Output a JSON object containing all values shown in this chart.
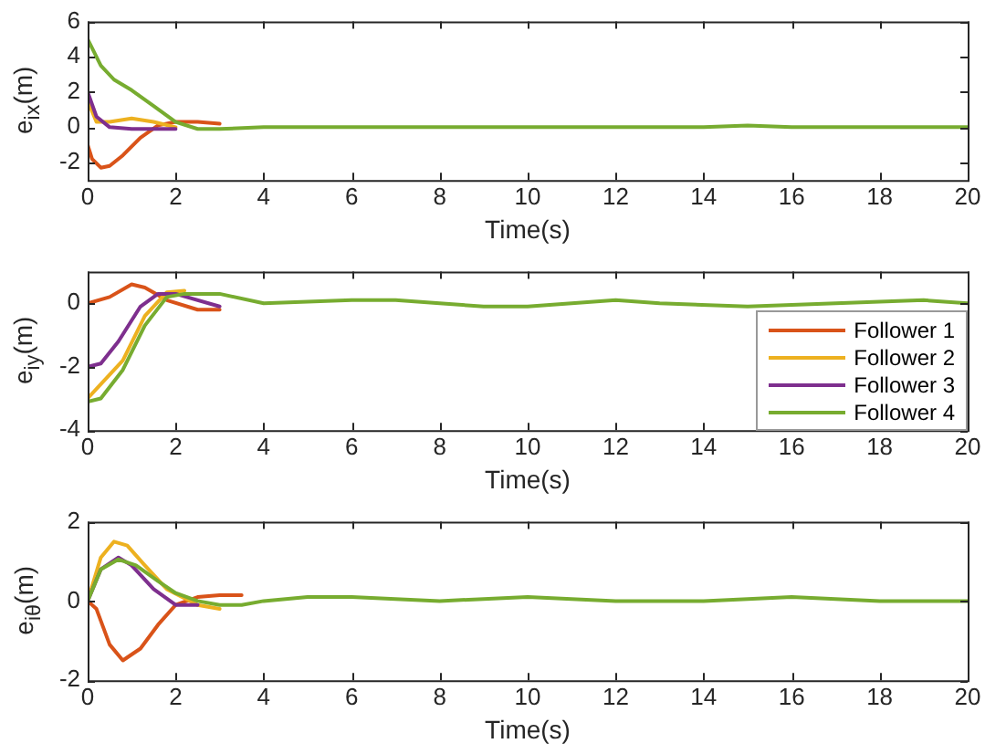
{
  "chart_data": [
    {
      "type": "line",
      "xlabel": "Time(s)",
      "ylabel": "e$_{ix}$(m)",
      "xlim": [
        0,
        20
      ],
      "xticks": [
        0,
        2,
        4,
        6,
        8,
        10,
        12,
        14,
        16,
        18,
        20
      ],
      "ylim": [
        -3,
        6
      ],
      "yticks": [
        -2,
        0,
        2,
        4,
        6
      ],
      "grid": false,
      "legend": false,
      "marker": "none",
      "line_style": "solid",
      "series": [
        {
          "color": "#d95319",
          "x": [
            0,
            0.1,
            0.3,
            0.5,
            0.8,
            1.2,
            1.6,
            2,
            2.5,
            3
          ],
          "values": [
            -1,
            -1.8,
            -2.3,
            -2.2,
            -1.6,
            -0.6,
            0.1,
            0.3,
            0.3,
            0.2
          ]
        },
        {
          "color": "#edb120",
          "x": [
            0,
            0.2,
            0.5,
            1,
            1.5,
            2
          ],
          "values": [
            1.5,
            0.3,
            0.3,
            0.5,
            0.3,
            0
          ]
        },
        {
          "color": "#7e2f8e",
          "x": [
            0,
            0.2,
            0.5,
            1,
            2
          ],
          "values": [
            2,
            0.6,
            0,
            -0.1,
            -0.1
          ]
        },
        {
          "color": "#77ac30",
          "x": [
            0,
            0.3,
            0.6,
            1,
            1.5,
            2,
            2.5,
            3,
            4,
            6,
            8,
            10,
            12,
            14,
            15,
            16,
            18,
            20
          ],
          "values": [
            5,
            3.5,
            2.7,
            2.1,
            1.2,
            0.3,
            -0.1,
            -0.1,
            0,
            0,
            0,
            0,
            0,
            0,
            0.1,
            0,
            0,
            0
          ]
        }
      ]
    },
    {
      "type": "line",
      "xlabel": "Time(s)",
      "ylabel": "e$_{iy}$(m)",
      "xlim": [
        0,
        20
      ],
      "xticks": [
        0,
        2,
        4,
        6,
        8,
        10,
        12,
        14,
        16,
        18,
        20
      ],
      "ylim": [
        -4,
        1
      ],
      "yticks": [
        -4,
        -2,
        0
      ],
      "grid": false,
      "legend": "bottom right",
      "marker": "none",
      "line_style": "solid",
      "series": [
        {
          "name": "Follower 1",
          "color": "#d95319",
          "x": [
            0,
            0.5,
            1,
            1.3,
            1.8,
            2.5,
            3
          ],
          "values": [
            0,
            0.2,
            0.6,
            0.5,
            0.1,
            -0.2,
            -0.2
          ]
        },
        {
          "name": "Follower 2",
          "color": "#edb120",
          "x": [
            0,
            0.8,
            1.3,
            1.8,
            2.2
          ],
          "values": [
            -3,
            -1.8,
            -0.4,
            0.35,
            0.4
          ]
        },
        {
          "name": "Follower 3",
          "color": "#7e2f8e",
          "x": [
            0,
            0.3,
            0.7,
            1.2,
            1.6,
            2,
            3
          ],
          "values": [
            -2,
            -1.9,
            -1.2,
            -0.1,
            0.3,
            0.3,
            -0.1
          ]
        },
        {
          "name": "Follower 4",
          "color": "#77ac30",
          "x": [
            0,
            0.3,
            0.8,
            1.3,
            1.8,
            2.2,
            3,
            4,
            6,
            7,
            8,
            9,
            10,
            12,
            13,
            15,
            17,
            19,
            20
          ],
          "values": [
            -3.1,
            -3,
            -2.1,
            -0.7,
            0.2,
            0.3,
            0.3,
            0,
            0.1,
            0.1,
            0,
            -0.1,
            -0.1,
            0.1,
            0,
            -0.1,
            0,
            0.1,
            0
          ]
        }
      ]
    },
    {
      "type": "line",
      "xlabel": "Time(s)",
      "ylabel": "e$_{iθ}$(m)",
      "xlim": [
        0,
        20
      ],
      "xticks": [
        0,
        2,
        4,
        6,
        8,
        10,
        12,
        14,
        16,
        18,
        20
      ],
      "ylim": [
        -2,
        2
      ],
      "yticks": [
        -2,
        0,
        2
      ],
      "grid": false,
      "legend": false,
      "marker": "none",
      "line_style": "solid",
      "series": [
        {
          "color": "#d95319",
          "x": [
            0,
            0.2,
            0.5,
            0.8,
            1.2,
            1.6,
            2,
            2.5,
            3,
            3.5
          ],
          "values": [
            0,
            -0.2,
            -1.1,
            -1.5,
            -1.2,
            -0.6,
            -0.1,
            0.1,
            0.15,
            0.15
          ]
        },
        {
          "color": "#edb120",
          "x": [
            0,
            0.3,
            0.6,
            0.9,
            1.3,
            1.8,
            2.5,
            3
          ],
          "values": [
            0,
            1.1,
            1.5,
            1.4,
            0.9,
            0.3,
            -0.1,
            -0.2
          ]
        },
        {
          "color": "#7e2f8e",
          "x": [
            0,
            0.3,
            0.7,
            1,
            1.5,
            2,
            2.5
          ],
          "values": [
            0,
            0.8,
            1.1,
            0.9,
            0.3,
            -0.1,
            -0.1
          ]
        },
        {
          "color": "#77ac30",
          "x": [
            0,
            0.3,
            0.7,
            1.1,
            1.6,
            2,
            2.5,
            3,
            3.5,
            4,
            5,
            6,
            8,
            10,
            12,
            14,
            16,
            18,
            20
          ],
          "values": [
            0,
            0.8,
            1.05,
            0.9,
            0.5,
            0.2,
            0,
            -0.1,
            -0.1,
            0,
            0.1,
            0.1,
            0,
            0.1,
            0,
            0,
            0.1,
            0,
            0
          ]
        }
      ]
    }
  ]
}
